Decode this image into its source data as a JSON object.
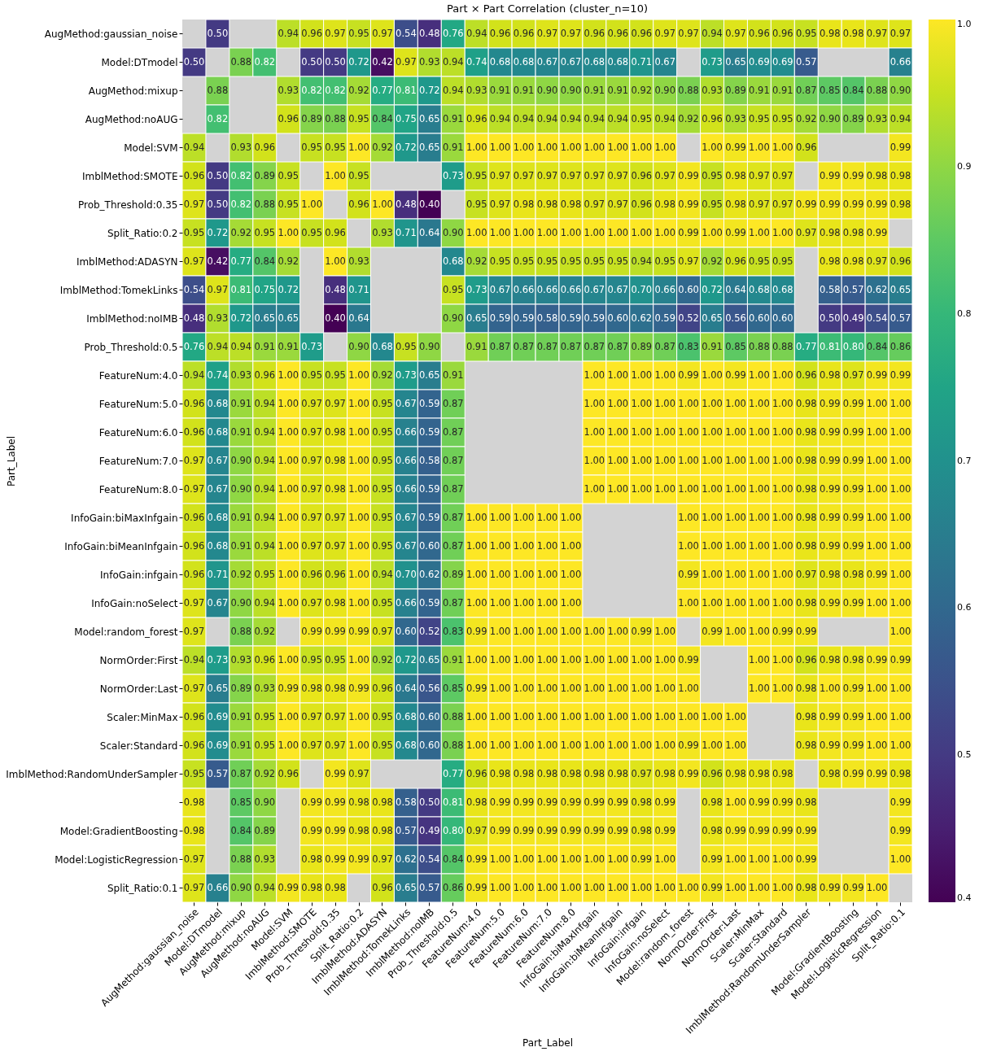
{
  "chart_data": {
    "type": "heatmap",
    "title": "Part × Part Correlation (cluster_n=10)",
    "xlabel": "Part_Label",
    "ylabel": "Part_Label",
    "categories": [
      "AugMethod:gaussian_noise",
      "Model:DTmodel",
      "AugMethod:mixup",
      "AugMethod:noAUG",
      "Model:SVM",
      "ImblMethod:SMOTE",
      "Prob_Threshold:0.35",
      "Split_Ratio:0.2",
      "ImblMethod:ADASYN",
      "ImblMethod:TomekLinks",
      "ImblMethod:noIMB",
      "Prob_Threshold:0.5",
      "FeatureNum:4.0",
      "FeatureNum:5.0",
      "FeatureNum:6.0",
      "FeatureNum:7.0",
      "FeatureNum:8.0",
      "InfoGain:biMaxInfgain",
      "InfoGain:biMeanInfgain",
      "InfoGain:infgain",
      "InfoGain:noSelect",
      "Model:random_forest",
      "NormOrder:First",
      "NormOrder:Last",
      "Scaler:MinMax",
      "Scaler:Standard",
      "ImblMethod:RandomUnderSampler",
      null,
      "Model:GradientBoosting",
      "Model:LogisticRegression",
      "Split_Ratio:0.1"
    ],
    "y_categories": [
      "AugMethod:gaussian_noise",
      "Model:DTmodel",
      "AugMethod:mixup",
      "AugMethod:noAUG",
      "Model:SVM",
      "ImblMethod:SMOTE",
      "Prob_Threshold:0.35",
      "Split_Ratio:0.2",
      "ImblMethod:ADASYN",
      "ImblMethod:TomekLinks",
      "ImblMethod:noIMB",
      "Prob_Threshold:0.5",
      "FeatureNum:4.0",
      "FeatureNum:5.0",
      "FeatureNum:6.0",
      "FeatureNum:7.0",
      "FeatureNum:8.0",
      "InfoGain:biMaxInfgain",
      "InfoGain:biMeanInfgain",
      "InfoGain:infgain",
      "InfoGain:noSelect",
      "Model:random_forest",
      "NormOrder:First",
      "NormOrder:Last",
      "Scaler:MinMax",
      "Scaler:Standard",
      "ImblMethod:RandomUnderSampler",
      null,
      "Model:GradientBoosting",
      "Model:LogisticRegression",
      "Split_Ratio:0.1"
    ],
    "cells": [
      [
        null,
        0.5,
        null,
        null,
        0.94,
        0.96,
        0.97,
        0.95,
        0.97,
        0.54,
        0.48,
        0.76,
        0.94,
        0.96,
        0.96,
        0.97,
        0.97,
        0.96,
        0.96,
        0.96,
        0.97,
        0.97,
        0.94,
        0.97,
        0.96,
        0.96,
        0.95,
        0.98,
        0.98,
        0.97,
        0.97
      ],
      [
        0.5,
        null,
        0.88,
        0.82,
        null,
        0.5,
        0.5,
        0.72,
        0.42,
        0.97,
        0.93,
        0.94,
        0.74,
        0.68,
        0.68,
        0.67,
        0.67,
        0.68,
        0.68,
        0.71,
        0.67,
        null,
        0.73,
        0.65,
        0.69,
        0.69,
        0.57,
        null,
        null,
        null,
        0.66
      ],
      [
        null,
        0.88,
        null,
        null,
        0.93,
        0.82,
        0.82,
        0.92,
        0.77,
        0.81,
        0.72,
        0.94,
        0.93,
        0.91,
        0.91,
        0.9,
        0.9,
        0.91,
        0.91,
        0.92,
        0.9,
        0.88,
        0.93,
        0.89,
        0.91,
        0.91,
        0.87,
        0.85,
        0.84,
        0.88,
        0.9
      ],
      [
        null,
        0.82,
        null,
        null,
        0.96,
        0.89,
        0.88,
        0.95,
        0.84,
        0.75,
        0.65,
        0.91,
        0.96,
        0.94,
        0.94,
        0.94,
        0.94,
        0.94,
        0.94,
        0.95,
        0.94,
        0.92,
        0.96,
        0.93,
        0.95,
        0.95,
        0.92,
        0.9,
        0.89,
        0.93,
        0.94
      ],
      [
        0.94,
        null,
        0.93,
        0.96,
        null,
        0.95,
        0.95,
        1.0,
        0.92,
        0.72,
        0.65,
        0.91,
        1.0,
        1.0,
        1.0,
        1.0,
        1.0,
        1.0,
        1.0,
        1.0,
        1.0,
        null,
        1.0,
        0.99,
        1.0,
        1.0,
        0.96,
        null,
        null,
        null,
        0.99
      ],
      [
        0.96,
        0.5,
        0.82,
        0.89,
        0.95,
        null,
        1.0,
        0.95,
        null,
        null,
        null,
        0.73,
        0.95,
        0.97,
        0.97,
        0.97,
        0.97,
        0.97,
        0.97,
        0.96,
        0.97,
        0.99,
        0.95,
        0.98,
        0.97,
        0.97,
        null,
        0.99,
        0.99,
        0.98,
        0.98
      ],
      [
        0.97,
        0.5,
        0.82,
        0.88,
        0.95,
        1.0,
        null,
        0.96,
        1.0,
        0.48,
        0.4,
        null,
        0.95,
        0.97,
        0.98,
        0.98,
        0.98,
        0.97,
        0.97,
        0.96,
        0.98,
        0.99,
        0.95,
        0.98,
        0.97,
        0.97,
        0.99,
        0.99,
        0.99,
        0.99,
        0.98
      ],
      [
        0.95,
        0.72,
        0.92,
        0.95,
        1.0,
        0.95,
        0.96,
        null,
        0.93,
        0.71,
        0.64,
        0.9,
        1.0,
        1.0,
        1.0,
        1.0,
        1.0,
        1.0,
        1.0,
        1.0,
        1.0,
        0.99,
        1.0,
        0.99,
        1.0,
        1.0,
        0.97,
        0.98,
        0.98,
        0.99,
        null
      ],
      [
        0.97,
        0.42,
        0.77,
        0.84,
        0.92,
        null,
        1.0,
        0.93,
        null,
        null,
        null,
        0.68,
        0.92,
        0.95,
        0.95,
        0.95,
        0.95,
        0.95,
        0.95,
        0.94,
        0.95,
        0.97,
        0.92,
        0.96,
        0.95,
        0.95,
        null,
        0.98,
        0.98,
        0.97,
        0.96
      ],
      [
        0.54,
        0.97,
        0.81,
        0.75,
        0.72,
        null,
        0.48,
        0.71,
        null,
        null,
        null,
        0.95,
        0.73,
        0.67,
        0.66,
        0.66,
        0.66,
        0.67,
        0.67,
        0.7,
        0.66,
        0.6,
        0.72,
        0.64,
        0.68,
        0.68,
        null,
        0.58,
        0.57,
        0.62,
        0.65
      ],
      [
        0.48,
        0.93,
        0.72,
        0.65,
        0.65,
        null,
        0.4,
        0.64,
        null,
        null,
        null,
        0.9,
        0.65,
        0.59,
        0.59,
        0.58,
        0.59,
        0.59,
        0.6,
        0.62,
        0.59,
        0.52,
        0.65,
        0.56,
        0.6,
        0.6,
        null,
        0.5,
        0.49,
        0.54,
        0.57
      ],
      [
        0.76,
        0.94,
        0.94,
        0.91,
        0.91,
        0.73,
        null,
        0.9,
        0.68,
        0.95,
        0.9,
        null,
        0.91,
        0.87,
        0.87,
        0.87,
        0.87,
        0.87,
        0.87,
        0.89,
        0.87,
        0.83,
        0.91,
        0.85,
        0.88,
        0.88,
        0.77,
        0.81,
        0.8,
        0.84,
        0.86
      ],
      [
        0.94,
        0.74,
        0.93,
        0.96,
        1.0,
        0.95,
        0.95,
        1.0,
        0.92,
        0.73,
        0.65,
        0.91,
        null,
        null,
        null,
        null,
        null,
        1.0,
        1.0,
        1.0,
        1.0,
        0.99,
        1.0,
        0.99,
        1.0,
        1.0,
        0.96,
        0.98,
        0.97,
        0.99,
        0.99
      ],
      [
        0.96,
        0.68,
        0.91,
        0.94,
        1.0,
        0.97,
        0.97,
        1.0,
        0.95,
        0.67,
        0.59,
        0.87,
        null,
        null,
        null,
        null,
        null,
        1.0,
        1.0,
        1.0,
        1.0,
        1.0,
        1.0,
        1.0,
        1.0,
        1.0,
        0.98,
        0.99,
        0.99,
        1.0,
        1.0
      ],
      [
        0.96,
        0.68,
        0.91,
        0.94,
        1.0,
        0.97,
        0.98,
        1.0,
        0.95,
        0.66,
        0.59,
        0.87,
        null,
        null,
        null,
        null,
        null,
        1.0,
        1.0,
        1.0,
        1.0,
        1.0,
        1.0,
        1.0,
        1.0,
        1.0,
        0.98,
        0.99,
        0.99,
        1.0,
        1.0
      ],
      [
        0.97,
        0.67,
        0.9,
        0.94,
        1.0,
        0.97,
        0.98,
        1.0,
        0.95,
        0.66,
        0.58,
        0.87,
        null,
        null,
        null,
        null,
        null,
        1.0,
        1.0,
        1.0,
        1.0,
        1.0,
        1.0,
        1.0,
        1.0,
        1.0,
        0.98,
        0.99,
        0.99,
        1.0,
        1.0
      ],
      [
        0.97,
        0.67,
        0.9,
        0.94,
        1.0,
        0.97,
        0.98,
        1.0,
        0.95,
        0.66,
        0.59,
        0.87,
        null,
        null,
        null,
        null,
        null,
        1.0,
        1.0,
        1.0,
        1.0,
        1.0,
        1.0,
        1.0,
        1.0,
        1.0,
        0.98,
        0.99,
        0.99,
        1.0,
        1.0
      ],
      [
        0.96,
        0.68,
        0.91,
        0.94,
        1.0,
        0.97,
        0.97,
        1.0,
        0.95,
        0.67,
        0.59,
        0.87,
        1.0,
        1.0,
        1.0,
        1.0,
        1.0,
        null,
        null,
        null,
        null,
        1.0,
        1.0,
        1.0,
        1.0,
        1.0,
        0.98,
        0.99,
        0.99,
        1.0,
        1.0
      ],
      [
        0.96,
        0.68,
        0.91,
        0.94,
        1.0,
        0.97,
        0.97,
        1.0,
        0.95,
        0.67,
        0.6,
        0.87,
        1.0,
        1.0,
        1.0,
        1.0,
        1.0,
        null,
        null,
        null,
        null,
        1.0,
        1.0,
        1.0,
        1.0,
        1.0,
        0.98,
        0.99,
        0.99,
        1.0,
        1.0
      ],
      [
        0.96,
        0.71,
        0.92,
        0.95,
        1.0,
        0.96,
        0.96,
        1.0,
        0.94,
        0.7,
        0.62,
        0.89,
        1.0,
        1.0,
        1.0,
        1.0,
        1.0,
        null,
        null,
        null,
        null,
        0.99,
        1.0,
        1.0,
        1.0,
        1.0,
        0.97,
        0.98,
        0.98,
        0.99,
        1.0
      ],
      [
        0.97,
        0.67,
        0.9,
        0.94,
        1.0,
        0.97,
        0.98,
        1.0,
        0.95,
        0.66,
        0.59,
        0.87,
        1.0,
        1.0,
        1.0,
        1.0,
        1.0,
        null,
        null,
        null,
        null,
        1.0,
        1.0,
        1.0,
        1.0,
        1.0,
        0.98,
        0.99,
        0.99,
        1.0,
        1.0
      ],
      [
        0.97,
        null,
        0.88,
        0.92,
        null,
        0.99,
        0.99,
        0.99,
        0.97,
        0.6,
        0.52,
        0.83,
        0.99,
        1.0,
        1.0,
        1.0,
        1.0,
        1.0,
        1.0,
        0.99,
        1.0,
        null,
        0.99,
        1.0,
        1.0,
        0.99,
        0.99,
        null,
        null,
        null,
        1.0
      ],
      [
        0.94,
        0.73,
        0.93,
        0.96,
        1.0,
        0.95,
        0.95,
        1.0,
        0.92,
        0.72,
        0.65,
        0.91,
        1.0,
        1.0,
        1.0,
        1.0,
        1.0,
        1.0,
        1.0,
        1.0,
        1.0,
        0.99,
        null,
        null,
        1.0,
        1.0,
        0.96,
        0.98,
        0.98,
        0.99,
        0.99
      ],
      [
        0.97,
        0.65,
        0.89,
        0.93,
        0.99,
        0.98,
        0.98,
        0.99,
        0.96,
        0.64,
        0.56,
        0.85,
        0.99,
        1.0,
        1.0,
        1.0,
        1.0,
        1.0,
        1.0,
        1.0,
        1.0,
        1.0,
        null,
        null,
        1.0,
        1.0,
        0.98,
        1.0,
        0.99,
        1.0,
        1.0
      ],
      [
        0.96,
        0.69,
        0.91,
        0.95,
        1.0,
        0.97,
        0.97,
        1.0,
        0.95,
        0.68,
        0.6,
        0.88,
        1.0,
        1.0,
        1.0,
        1.0,
        1.0,
        1.0,
        1.0,
        1.0,
        1.0,
        1.0,
        1.0,
        1.0,
        null,
        null,
        0.98,
        0.99,
        0.99,
        1.0,
        1.0
      ],
      [
        0.96,
        0.69,
        0.91,
        0.95,
        1.0,
        0.97,
        0.97,
        1.0,
        0.95,
        0.68,
        0.6,
        0.88,
        1.0,
        1.0,
        1.0,
        1.0,
        1.0,
        1.0,
        1.0,
        1.0,
        1.0,
        0.99,
        1.0,
        1.0,
        null,
        null,
        0.98,
        0.99,
        0.99,
        1.0,
        1.0
      ],
      [
        0.95,
        0.57,
        0.87,
        0.92,
        0.96,
        null,
        0.99,
        0.97,
        null,
        null,
        null,
        0.77,
        0.96,
        0.98,
        0.98,
        0.98,
        0.98,
        0.98,
        0.98,
        0.97,
        0.98,
        0.99,
        0.96,
        0.98,
        0.98,
        0.98,
        null,
        0.98,
        0.99,
        0.99,
        0.98
      ],
      [
        0.98,
        null,
        0.85,
        0.9,
        null,
        0.99,
        0.99,
        0.98,
        0.98,
        0.58,
        0.5,
        0.81,
        0.98,
        0.99,
        0.99,
        0.99,
        0.99,
        0.99,
        0.99,
        0.98,
        0.99,
        null,
        0.98,
        1.0,
        0.99,
        0.99,
        0.98,
        null,
        null,
        null,
        0.99
      ],
      [
        0.98,
        null,
        0.84,
        0.89,
        null,
        0.99,
        0.99,
        0.98,
        0.98,
        0.57,
        0.49,
        0.8,
        0.97,
        0.99,
        0.99,
        0.99,
        0.99,
        0.99,
        0.99,
        0.98,
        0.99,
        null,
        0.98,
        0.99,
        0.99,
        0.99,
        0.99,
        null,
        null,
        null,
        0.99
      ],
      [
        0.97,
        null,
        0.88,
        0.93,
        null,
        0.98,
        0.99,
        0.99,
        0.97,
        0.62,
        0.54,
        0.84,
        0.99,
        1.0,
        1.0,
        1.0,
        1.0,
        1.0,
        1.0,
        0.99,
        1.0,
        null,
        0.99,
        1.0,
        1.0,
        1.0,
        0.99,
        null,
        null,
        null,
        1.0
      ],
      [
        0.97,
        0.66,
        0.9,
        0.94,
        0.99,
        0.98,
        0.98,
        null,
        0.96,
        0.65,
        0.57,
        0.86,
        0.99,
        1.0,
        1.0,
        1.0,
        1.0,
        1.0,
        1.0,
        1.0,
        1.0,
        1.0,
        0.99,
        1.0,
        1.0,
        1.0,
        0.98,
        0.99,
        0.99,
        1.0,
        null
      ]
    ],
    "cell_labels": [
      [
        null,
        "0.50",
        null,
        null,
        "0.94",
        "0.96",
        "0.97",
        "0.95",
        "0.97",
        "0.54",
        "0.48",
        "0.76",
        "0.94",
        "0.96",
        "0.96",
        "0.97",
        "0.97",
        "0.96",
        "0.96",
        "0.96",
        "0.97",
        "0.97",
        "0.94",
        "0.97",
        "0.96",
        "0.96",
        "0.95",
        "0.98",
        "0.98",
        "0.97",
        "0.97"
      ],
      [
        "0.50",
        null,
        "0.88",
        "0.82",
        null,
        "0.50",
        "0.50",
        "0.72",
        "0.42",
        "0.97",
        "0.93",
        "0.94",
        "0.74",
        "0.68",
        "0.68",
        "0.67",
        "0.67",
        "0.68",
        "0.68",
        "0.71",
        "0.67",
        null,
        "0.73",
        "0.65",
        "0.69",
        "0.69",
        "0.57",
        null,
        null,
        null,
        "0.66"
      ],
      [
        null,
        "0.88",
        null,
        null,
        "0.93",
        "0.82",
        "0.82",
        "0.92",
        "0.77",
        "0.81",
        "0.72",
        "0.94",
        "0.93",
        "0.91",
        "0.91",
        "0.90",
        "0.90",
        "0.91",
        "0.91",
        "0.92",
        "0.90",
        "0.88",
        "0.93",
        "0.89",
        "0.91",
        "0.91",
        "0.87",
        "0.85",
        "0.84",
        "0.88",
        "0.90"
      ],
      [
        null,
        "0.82",
        null,
        null,
        "0.96",
        "0.89",
        "0.88",
        "0.95",
        "0.84",
        "0.75",
        "0.65",
        "0.91",
        "0.96",
        "0.94",
        "0.94",
        "0.94",
        "0.94",
        "0.94",
        "0.94",
        "0.95",
        "0.94",
        "0.92",
        "0.96",
        "0.93",
        "0.95",
        "0.95",
        "0.92",
        "0.90",
        "0.89",
        "0.93",
        "0.94"
      ],
      [
        "0.94",
        null,
        "0.93",
        "0.96",
        null,
        "0.95",
        "0.95",
        "1.00",
        "0.92",
        "0.72",
        "0.65",
        "0.91",
        "1.00",
        "1.00",
        "1.00",
        "1.00",
        "1.00",
        "1.00",
        "1.00",
        "1.00",
        "1.00",
        null,
        "1.00",
        "0.99",
        "1.00",
        "1.00",
        "0.96",
        null,
        null,
        null,
        "0.99"
      ],
      [
        "0.96",
        "0.50",
        "0.82",
        "0.89",
        "0.95",
        null,
        "1.00",
        "0.95",
        null,
        null,
        null,
        "0.73",
        "0.95",
        "0.97",
        "0.97",
        "0.97",
        "0.97",
        "0.97",
        "0.97",
        "0.96",
        "0.97",
        "0.99",
        "0.95",
        "0.98",
        "0.97",
        "0.97",
        null,
        "0.99",
        "0.99",
        "0.98",
        "0.98"
      ],
      [
        "0.97",
        "0.50",
        "0.82",
        "0.88",
        "0.95",
        "1.00",
        null,
        "0.96",
        "1.00",
        "0.48",
        "0.40",
        null,
        "0.95",
        "0.97",
        "0.98",
        "0.98",
        "0.98",
        "0.97",
        "0.97",
        "0.96",
        "0.98",
        "0.99",
        "0.95",
        "0.98",
        "0.97",
        "0.97",
        "0.99",
        "0.99",
        "0.99",
        "0.99",
        "0.98"
      ],
      [
        "0.95",
        "0.72",
        "0.92",
        "0.95",
        "1.00",
        "0.95",
        "0.96",
        null,
        "0.93",
        "0.71",
        "0.64",
        "0.90",
        "1.00",
        "1.00",
        "1.00",
        "1.00",
        "1.00",
        "1.00",
        "1.00",
        "1.00",
        "1.00",
        "0.99",
        "1.00",
        "0.99",
        "1.00",
        "1.00",
        "0.97",
        "0.98",
        "0.98",
        "0.99",
        null
      ],
      [
        "0.97",
        "0.42",
        "0.77",
        "0.84",
        "0.92",
        null,
        "1.00",
        "0.93",
        null,
        null,
        null,
        "0.68",
        "0.92",
        "0.95",
        "0.95",
        "0.95",
        "0.95",
        "0.95",
        "0.95",
        "0.94",
        "0.95",
        "0.97",
        "0.92",
        "0.96",
        "0.95",
        "0.95",
        null,
        "0.98",
        "0.98",
        "0.97",
        "0.96"
      ],
      [
        "0.54",
        "0.97",
        "0.81",
        "0.75",
        "0.72",
        null,
        "0.48",
        "0.71",
        null,
        null,
        null,
        "0.95",
        "0.73",
        "0.67",
        "0.66",
        "0.66",
        "0.66",
        "0.67",
        "0.67",
        "0.70",
        "0.66",
        "0.60",
        "0.72",
        "0.64",
        "0.68",
        "0.68",
        null,
        "0.58",
        "0.57",
        "0.62",
        "0.65"
      ],
      [
        "0.48",
        "0.93",
        "0.72",
        "0.65",
        "0.65",
        null,
        "0.40",
        "0.64",
        null,
        null,
        null,
        "0.90",
        "0.65",
        "0.59",
        "0.59",
        "0.58",
        "0.59",
        "0.59",
        "0.60",
        "0.62",
        "0.59",
        "0.52",
        "0.65",
        "0.56",
        "0.60",
        "0.60",
        null,
        "0.50",
        "0.49",
        "0.54",
        "0.57"
      ],
      [
        "0.76",
        "0.94",
        "0.94",
        "0.91",
        "0.91",
        "0.73",
        null,
        "0.90",
        "0.68",
        "0.95",
        "0.90",
        null,
        "0.91",
        "0.87",
        "0.87",
        "0.87",
        "0.87",
        "0.87",
        "0.87",
        "0.89",
        "0.87",
        "0.83",
        "0.91",
        "0.85",
        "0.88",
        "0.88",
        "0.77",
        "0.81",
        "0.80",
        "0.84",
        "0.86"
      ],
      [
        "0.94",
        "0.74",
        "0.93",
        "0.96",
        "1.00",
        "0.95",
        "0.95",
        "1.00",
        "0.92",
        "0.73",
        "0.65",
        "0.91",
        null,
        null,
        null,
        null,
        null,
        "1.00",
        "1.00",
        "1.00",
        "1.00",
        "0.99",
        "1.00",
        "0.99",
        "1.00",
        "1.00",
        "0.96",
        "0.98",
        "0.97",
        "0.99",
        "0.99"
      ],
      [
        "0.96",
        "0.68",
        "0.91",
        "0.94",
        "1.00",
        "0.97",
        "0.97",
        "1.00",
        "0.95",
        "0.67",
        "0.59",
        "0.87",
        null,
        null,
        null,
        null,
        null,
        "1.00",
        "1.00",
        "1.00",
        "1.00",
        "1.00",
        "1.00",
        "1.00",
        "1.00",
        "1.00",
        "0.98",
        "0.99",
        "0.99",
        "1.00",
        "1.00"
      ],
      [
        "0.96",
        "0.68",
        "0.91",
        "0.94",
        "1.00",
        "0.97",
        "0.98",
        "1.00",
        "0.95",
        "0.66",
        "0.59",
        "0.87",
        null,
        null,
        null,
        null,
        null,
        "1.00",
        "1.00",
        "1.00",
        "1.00",
        "1.00",
        "1.00",
        "1.00",
        "1.00",
        "1.00",
        "0.98",
        "0.99",
        "0.99",
        "1.00",
        "1.00"
      ],
      [
        "0.97",
        "0.67",
        "0.90",
        "0.94",
        "1.00",
        "0.97",
        "0.98",
        "1.00",
        "0.95",
        "0.66",
        "0.58",
        "0.87",
        null,
        null,
        null,
        null,
        null,
        "1.00",
        "1.00",
        "1.00",
        "1.00",
        "1.00",
        "1.00",
        "1.00",
        "1.00",
        "1.00",
        "0.98",
        "0.99",
        "0.99",
        "1.00",
        "1.00"
      ],
      [
        "0.97",
        "0.67",
        "0.90",
        "0.94",
        "1.00",
        "0.97",
        "0.98",
        "1.00",
        "0.95",
        "0.66",
        "0.59",
        "0.87",
        null,
        null,
        null,
        null,
        null,
        "1.00",
        "1.00",
        "1.00",
        "1.00",
        "1.00",
        "1.00",
        "1.00",
        "1.00",
        "1.00",
        "0.98",
        "0.99",
        "0.99",
        "1.00",
        "1.00"
      ],
      [
        "0.96",
        "0.68",
        "0.91",
        "0.94",
        "1.00",
        "0.97",
        "0.97",
        "1.00",
        "0.95",
        "0.67",
        "0.59",
        "0.87",
        "1.00",
        "1.00",
        "1.00",
        "1.00",
        "1.00",
        null,
        null,
        null,
        null,
        "1.00",
        "1.00",
        "1.00",
        "1.00",
        "1.00",
        "0.98",
        "0.99",
        "0.99",
        "1.00",
        "1.00"
      ],
      [
        "0.96",
        "0.68",
        "0.91",
        "0.94",
        "1.00",
        "0.97",
        "0.97",
        "1.00",
        "0.95",
        "0.67",
        "0.60",
        "0.87",
        "1.00",
        "1.00",
        "1.00",
        "1.00",
        "1.00",
        null,
        null,
        null,
        null,
        "1.00",
        "1.00",
        "1.00",
        "1.00",
        "1.00",
        "0.98",
        "0.99",
        "0.99",
        "1.00",
        "1.00"
      ],
      [
        "0.96",
        "0.71",
        "0.92",
        "0.95",
        "1.00",
        "0.96",
        "0.96",
        "1.00",
        "0.94",
        "0.70",
        "0.62",
        "0.89",
        "1.00",
        "1.00",
        "1.00",
        "1.00",
        "1.00",
        null,
        null,
        null,
        null,
        "0.99",
        "1.00",
        "1.00",
        "1.00",
        "1.00",
        "0.97",
        "0.98",
        "0.98",
        "0.99",
        "1.00"
      ],
      [
        "0.97",
        "0.67",
        "0.90",
        "0.94",
        "1.00",
        "0.97",
        "0.98",
        "1.00",
        "0.95",
        "0.66",
        "0.59",
        "0.87",
        "1.00",
        "1.00",
        "1.00",
        "1.00",
        "1.00",
        null,
        null,
        null,
        null,
        "1.00",
        "1.00",
        "1.00",
        "1.00",
        "1.00",
        "0.98",
        "0.99",
        "0.99",
        "1.00",
        "1.00"
      ],
      [
        "0.97",
        null,
        "0.88",
        "0.92",
        null,
        "0.99",
        "0.99",
        "0.99",
        "0.97",
        "0.60",
        "0.52",
        "0.83",
        "0.99",
        "1.00",
        "1.00",
        "1.00",
        "1.00",
        "1.00",
        "1.00",
        "0.99",
        "1.00",
        null,
        "0.99",
        "1.00",
        "1.00",
        "0.99",
        "0.99",
        null,
        null,
        null,
        "1.00"
      ],
      [
        "0.94",
        "0.73",
        "0.93",
        "0.96",
        "1.00",
        "0.95",
        "0.95",
        "1.00",
        "0.92",
        "0.72",
        "0.65",
        "0.91",
        "1.00",
        "1.00",
        "1.00",
        "1.00",
        "1.00",
        "1.00",
        "1.00",
        "1.00",
        "1.00",
        "0.99",
        null,
        null,
        "1.00",
        "1.00",
        "0.96",
        "0.98",
        "0.98",
        "0.99",
        "0.99"
      ],
      [
        "0.97",
        "0.65",
        "0.89",
        "0.93",
        "0.99",
        "0.98",
        "0.98",
        "0.99",
        "0.96",
        "0.64",
        "0.56",
        "0.85",
        "0.99",
        "1.00",
        "1.00",
        "1.00",
        "1.00",
        "1.00",
        "1.00",
        "1.00",
        "1.00",
        "1.00",
        null,
        null,
        "1.00",
        "1.00",
        "0.98",
        "1.00",
        "0.99",
        "1.00",
        "1.00"
      ],
      [
        "0.96",
        "0.69",
        "0.91",
        "0.95",
        "1.00",
        "0.97",
        "0.97",
        "1.00",
        "0.95",
        "0.68",
        "0.60",
        "0.88",
        "1.00",
        "1.00",
        "1.00",
        "1.00",
        "1.00",
        "1.00",
        "1.00",
        "1.00",
        "1.00",
        "1.00",
        "1.00",
        "1.00",
        null,
        null,
        "0.98",
        "0.99",
        "0.99",
        "1.00",
        "1.00"
      ],
      [
        "0.96",
        "0.69",
        "0.91",
        "0.95",
        "1.00",
        "0.97",
        "0.97",
        "1.00",
        "0.95",
        "0.68",
        "0.60",
        "0.88",
        "1.00",
        "1.00",
        "1.00",
        "1.00",
        "1.00",
        "1.00",
        "1.00",
        "1.00",
        "1.00",
        "0.99",
        "1.00",
        "1.00",
        null,
        null,
        "0.98",
        "0.99",
        "0.99",
        "1.00",
        "1.00"
      ],
      [
        "0.95",
        "0.57",
        "0.87",
        "0.92",
        "0.96",
        null,
        "0.99",
        "0.97",
        null,
        null,
        null,
        "0.77",
        "0.96",
        "0.98",
        "0.98",
        "0.98",
        "0.98",
        "0.98",
        "0.98",
        "0.97",
        "0.98",
        "0.99",
        "0.96",
        "0.98",
        "0.98",
        "0.98",
        null,
        "0.98",
        "0.99",
        "0.99",
        "0.98"
      ],
      [
        "0.98",
        null,
        "0.85",
        "0.90",
        null,
        "0.99",
        "0.99",
        "0.98",
        "0.98",
        "0.58",
        "0.50",
        "0.81",
        "0.98",
        "0.99",
        "0.99",
        "0.99",
        "0.99",
        "0.99",
        "0.99",
        "0.98",
        "0.99",
        null,
        "0.98",
        "1.00",
        "0.99",
        "0.99",
        "0.98",
        null,
        null,
        null,
        "0.99"
      ],
      [
        "0.98",
        null,
        "0.84",
        "0.89",
        null,
        "0.99",
        "0.99",
        "0.98",
        "0.98",
        "0.57",
        "0.49",
        "0.80",
        "0.97",
        "0.99",
        "0.99",
        "0.99",
        "0.99",
        "0.99",
        "0.99",
        "0.98",
        "0.99",
        null,
        "0.98",
        "0.99",
        "0.99",
        "0.99",
        "0.99",
        null,
        null,
        null,
        "0.99"
      ],
      [
        "0.97",
        null,
        "0.88",
        "0.93",
        null,
        "0.98",
        "0.99",
        "0.99",
        "0.97",
        "0.62",
        "0.54",
        "0.84",
        "0.99",
        "1.00",
        "1.00",
        "1.00",
        "1.00",
        "1.00",
        "1.00",
        "0.99",
        "1.00",
        null,
        "0.99",
        "1.00",
        "1.00",
        "1.00",
        "0.99",
        null,
        null,
        null,
        "1.00"
      ],
      [
        "0.97",
        "0.66",
        "0.90",
        "0.94",
        "0.99",
        "0.98",
        "0.98",
        null,
        "0.96",
        "0.65",
        "0.57",
        "0.86",
        "0.99",
        "1.00",
        "1.00",
        "1.00",
        "1.00",
        "1.00",
        "1.00",
        "1.00",
        "1.00",
        "1.00",
        "0.99",
        "1.00",
        "1.00",
        "1.00",
        "0.98",
        "0.99",
        "0.99",
        "1.00",
        null
      ]
    ],
    "data_labels": true,
    "clim": [
      0.4,
      1.0
    ],
    "cticks": [
      0.4,
      0.5,
      0.6,
      0.7,
      0.8,
      0.9,
      {
        "value": 1,
        "label": "1.0"
      }
    ]
  }
}
